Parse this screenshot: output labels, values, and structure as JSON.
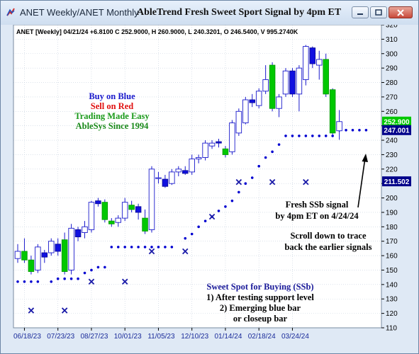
{
  "window": {
    "title": "ANET Weekly/ANET Monthly",
    "heading": "AbleTrend Fresh Sweet Sport Signal by 4pm ET",
    "controls": [
      "minimize",
      "maximize",
      "close"
    ],
    "icon": "chart-app-icon"
  },
  "info_line": "ANET [Weekly] 04/21/24 +6.8100 C 252.9000, H 260.9000, L 240.3201, O 246.5400, V 995.2740K",
  "legend_text": {
    "buy": "Buy on Blue",
    "sell": "Sell on Red",
    "easy": "Trading Made Easy",
    "since": "AbleSys Since 1994"
  },
  "annotation_signal": [
    "Fresh SSb signal",
    "by 4pm ET on 4/24/24"
  ],
  "annotation_scroll": [
    "Scroll down to trace",
    "back the earlier signals"
  ],
  "annotation_sweet": [
    "Sweet Spot for Buying (SSb)",
    "1) After testing support level",
    "2) Emerging blue bar",
    "or closeup bar"
  ],
  "colors": {
    "up_bar": "#1010e0",
    "down_bar": "#00c800",
    "stop_dot": "#0000d0",
    "signal_x": "#1a1aa8",
    "buy_text": "#1a1acc",
    "sell_text": "#e01010",
    "easy_text": "#1a9a1a",
    "since_text": "#1a8a1a",
    "sweet_text": "#1a1a99",
    "price_tag_green": "#00c800",
    "price_tag_navy": "#00008a"
  },
  "chart_data": {
    "type": "candlestick",
    "ylim": [
      110,
      320
    ],
    "yticks": [
      110,
      120,
      130,
      140,
      150,
      160,
      170,
      180,
      190,
      200,
      210,
      220,
      230,
      240,
      250,
      260,
      270,
      280,
      290,
      300,
      310,
      320
    ],
    "x_tick_labels": [
      {
        "label": "06/18/23",
        "bar": 1
      },
      {
        "label": "07/23/23",
        "bar": 6
      },
      {
        "label": "08/27/23",
        "bar": 11
      },
      {
        "label": "10/01/23",
        "bar": 16
      },
      {
        "label": "11/05/23",
        "bar": 21
      },
      {
        "label": "12/10/23",
        "bar": 26
      },
      {
        "label": "01/14/24",
        "bar": 31
      },
      {
        "label": "02/18/24",
        "bar": 36
      },
      {
        "label": "03/24/24",
        "bar": 41
      }
    ],
    "price_tags": [
      {
        "value": 252.9,
        "label": "252.900",
        "color": "green"
      },
      {
        "value": 247.001,
        "label": "247.001",
        "color": "navy"
      },
      {
        "value": 211.502,
        "label": "211.502",
        "color": "navy"
      }
    ],
    "candles": [
      {
        "o": 158,
        "h": 168,
        "l": 155,
        "c": 163,
        "fill": "hollow"
      },
      {
        "o": 163,
        "h": 172,
        "l": 155,
        "c": 157,
        "fill": "green"
      },
      {
        "o": 157,
        "h": 160,
        "l": 147,
        "c": 149,
        "fill": "green"
      },
      {
        "o": 150,
        "h": 168,
        "l": 148,
        "c": 166,
        "fill": "hollow"
      },
      {
        "o": 159,
        "h": 164,
        "l": 155,
        "c": 162,
        "fill": "blue"
      },
      {
        "o": 162,
        "h": 172,
        "l": 160,
        "c": 170,
        "fill": "hollow"
      },
      {
        "o": 168,
        "h": 172,
        "l": 160,
        "c": 163,
        "fill": "blue"
      },
      {
        "o": 171,
        "h": 176,
        "l": 147,
        "c": 149,
        "fill": "green"
      },
      {
        "o": 150,
        "h": 182,
        "l": 147,
        "c": 179,
        "fill": "hollow"
      },
      {
        "o": 173,
        "h": 180,
        "l": 170,
        "c": 178,
        "fill": "blue"
      },
      {
        "o": 176,
        "h": 184,
        "l": 172,
        "c": 180,
        "fill": "hollow"
      },
      {
        "o": 178,
        "h": 198,
        "l": 176,
        "c": 197,
        "fill": "hollow"
      },
      {
        "o": 196,
        "h": 200,
        "l": 194,
        "c": 198,
        "fill": "blue"
      },
      {
        "o": 197,
        "h": 199,
        "l": 183,
        "c": 185,
        "fill": "green"
      },
      {
        "o": 184,
        "h": 186,
        "l": 180,
        "c": 182,
        "fill": "green"
      },
      {
        "o": 183,
        "h": 188,
        "l": 180,
        "c": 186,
        "fill": "hollow"
      },
      {
        "o": 186,
        "h": 200,
        "l": 184,
        "c": 197,
        "fill": "hollow"
      },
      {
        "o": 195,
        "h": 198,
        "l": 190,
        "c": 192,
        "fill": "green"
      },
      {
        "o": 190,
        "h": 196,
        "l": 185,
        "c": 194,
        "fill": "blue"
      },
      {
        "o": 186,
        "h": 192,
        "l": 175,
        "c": 177,
        "fill": "green"
      },
      {
        "o": 178,
        "h": 222,
        "l": 176,
        "c": 220,
        "fill": "hollow"
      },
      {
        "o": 214,
        "h": 218,
        "l": 210,
        "c": 214,
        "fill": "hollow"
      },
      {
        "o": 213,
        "h": 216,
        "l": 207,
        "c": 208,
        "fill": "blue"
      },
      {
        "o": 210,
        "h": 220,
        "l": 209,
        "c": 218,
        "fill": "hollow"
      },
      {
        "o": 218,
        "h": 222,
        "l": 215,
        "c": 220,
        "fill": "hollow"
      },
      {
        "o": 219,
        "h": 222,
        "l": 216,
        "c": 217,
        "fill": "blue"
      },
      {
        "o": 218,
        "h": 230,
        "l": 216,
        "c": 227,
        "fill": "hollow"
      },
      {
        "o": 227,
        "h": 230,
        "l": 224,
        "c": 228,
        "fill": "hollow"
      },
      {
        "o": 228,
        "h": 240,
        "l": 226,
        "c": 238,
        "fill": "hollow"
      },
      {
        "o": 236,
        "h": 240,
        "l": 234,
        "c": 238,
        "fill": "hollow"
      },
      {
        "o": 238,
        "h": 241,
        "l": 235,
        "c": 239,
        "fill": "blue"
      },
      {
        "o": 234,
        "h": 236,
        "l": 228,
        "c": 230,
        "fill": "green"
      },
      {
        "o": 232,
        "h": 254,
        "l": 230,
        "c": 252,
        "fill": "hollow"
      },
      {
        "o": 245,
        "h": 262,
        "l": 243,
        "c": 260,
        "fill": "hollow"
      },
      {
        "o": 252,
        "h": 270,
        "l": 251,
        "c": 268,
        "fill": "hollow"
      },
      {
        "o": 268,
        "h": 272,
        "l": 263,
        "c": 266,
        "fill": "blue"
      },
      {
        "o": 264,
        "h": 276,
        "l": 262,
        "c": 274,
        "fill": "hollow"
      },
      {
        "o": 274,
        "h": 292,
        "l": 272,
        "c": 282,
        "fill": "hollow"
      },
      {
        "o": 292,
        "h": 294,
        "l": 260,
        "c": 262,
        "fill": "green"
      },
      {
        "o": 262,
        "h": 272,
        "l": 256,
        "c": 270,
        "fill": "hollow"
      },
      {
        "o": 272,
        "h": 290,
        "l": 270,
        "c": 288,
        "fill": "hollow"
      },
      {
        "o": 288,
        "h": 290,
        "l": 270,
        "c": 272,
        "fill": "blue"
      },
      {
        "o": 272,
        "h": 292,
        "l": 260,
        "c": 290,
        "fill": "hollow"
      },
      {
        "o": 282,
        "h": 306,
        "l": 278,
        "c": 305,
        "fill": "hollow"
      },
      {
        "o": 293,
        "h": 305,
        "l": 290,
        "c": 304,
        "fill": "blue"
      },
      {
        "o": 292,
        "h": 302,
        "l": 282,
        "c": 296,
        "fill": "hollow"
      },
      {
        "o": 296,
        "h": 300,
        "l": 270,
        "c": 272,
        "fill": "green"
      },
      {
        "o": 275,
        "h": 276,
        "l": 244,
        "c": 245,
        "fill": "green"
      },
      {
        "o": 246.54,
        "h": 260.9,
        "l": 240.3201,
        "c": 252.9,
        "fill": "hollow"
      }
    ],
    "stop_dots": [
      {
        "bar": 0,
        "y": 142
      },
      {
        "bar": 1,
        "y": 142
      },
      {
        "bar": 2,
        "y": 142
      },
      {
        "bar": 3,
        "y": 142
      },
      {
        "bar": 5,
        "y": 142
      },
      {
        "bar": 6,
        "y": 144
      },
      {
        "bar": 7,
        "y": 144
      },
      {
        "bar": 8,
        "y": 144
      },
      {
        "bar": 9,
        "y": 144
      },
      {
        "bar": 10,
        "y": 148
      },
      {
        "bar": 11,
        "y": 150
      },
      {
        "bar": 12,
        "y": 152
      },
      {
        "bar": 13,
        "y": 152
      },
      {
        "bar": 14,
        "y": 166
      },
      {
        "bar": 15,
        "y": 166
      },
      {
        "bar": 16,
        "y": 166
      },
      {
        "bar": 17,
        "y": 166
      },
      {
        "bar": 18,
        "y": 166
      },
      {
        "bar": 19,
        "y": 166
      },
      {
        "bar": 20,
        "y": 166
      },
      {
        "bar": 21,
        "y": 166
      },
      {
        "bar": 22,
        "y": 166
      },
      {
        "bar": 23,
        "y": 166
      },
      {
        "bar": 25,
        "y": 172
      },
      {
        "bar": 26,
        "y": 175
      },
      {
        "bar": 27,
        "y": 180
      },
      {
        "bar": 28,
        "y": 184
      },
      {
        "bar": 29,
        "y": 187
      },
      {
        "bar": 30,
        "y": 191
      },
      {
        "bar": 31,
        "y": 194
      },
      {
        "bar": 32,
        "y": 198
      },
      {
        "bar": 33,
        "y": 204
      },
      {
        "bar": 34,
        "y": 210
      },
      {
        "bar": 35,
        "y": 214
      },
      {
        "bar": 36,
        "y": 222
      },
      {
        "bar": 37,
        "y": 228
      },
      {
        "bar": 38,
        "y": 232
      },
      {
        "bar": 39,
        "y": 237
      },
      {
        "bar": 40,
        "y": 243
      },
      {
        "bar": 41,
        "y": 243
      },
      {
        "bar": 42,
        "y": 243
      },
      {
        "bar": 43,
        "y": 243
      },
      {
        "bar": 44,
        "y": 243
      },
      {
        "bar": 45,
        "y": 243
      },
      {
        "bar": 46,
        "y": 243
      },
      {
        "bar": 47,
        "y": 243
      },
      {
        "bar": 48,
        "y": 247
      },
      {
        "bar": 49,
        "y": 247
      },
      {
        "bar": 50,
        "y": 247
      },
      {
        "bar": 51,
        "y": 247
      },
      {
        "bar": 52,
        "y": 247
      }
    ],
    "signal_marks": [
      {
        "bar": 2,
        "y": 122
      },
      {
        "bar": 7,
        "y": 122
      },
      {
        "bar": 11,
        "y": 142
      },
      {
        "bar": 16,
        "y": 142
      },
      {
        "bar": 20,
        "y": 163
      },
      {
        "bar": 25,
        "y": 163
      },
      {
        "bar": 29,
        "y": 187
      },
      {
        "bar": 33,
        "y": 211
      },
      {
        "bar": 38,
        "y": 211
      },
      {
        "bar": 43,
        "y": 211
      }
    ]
  }
}
